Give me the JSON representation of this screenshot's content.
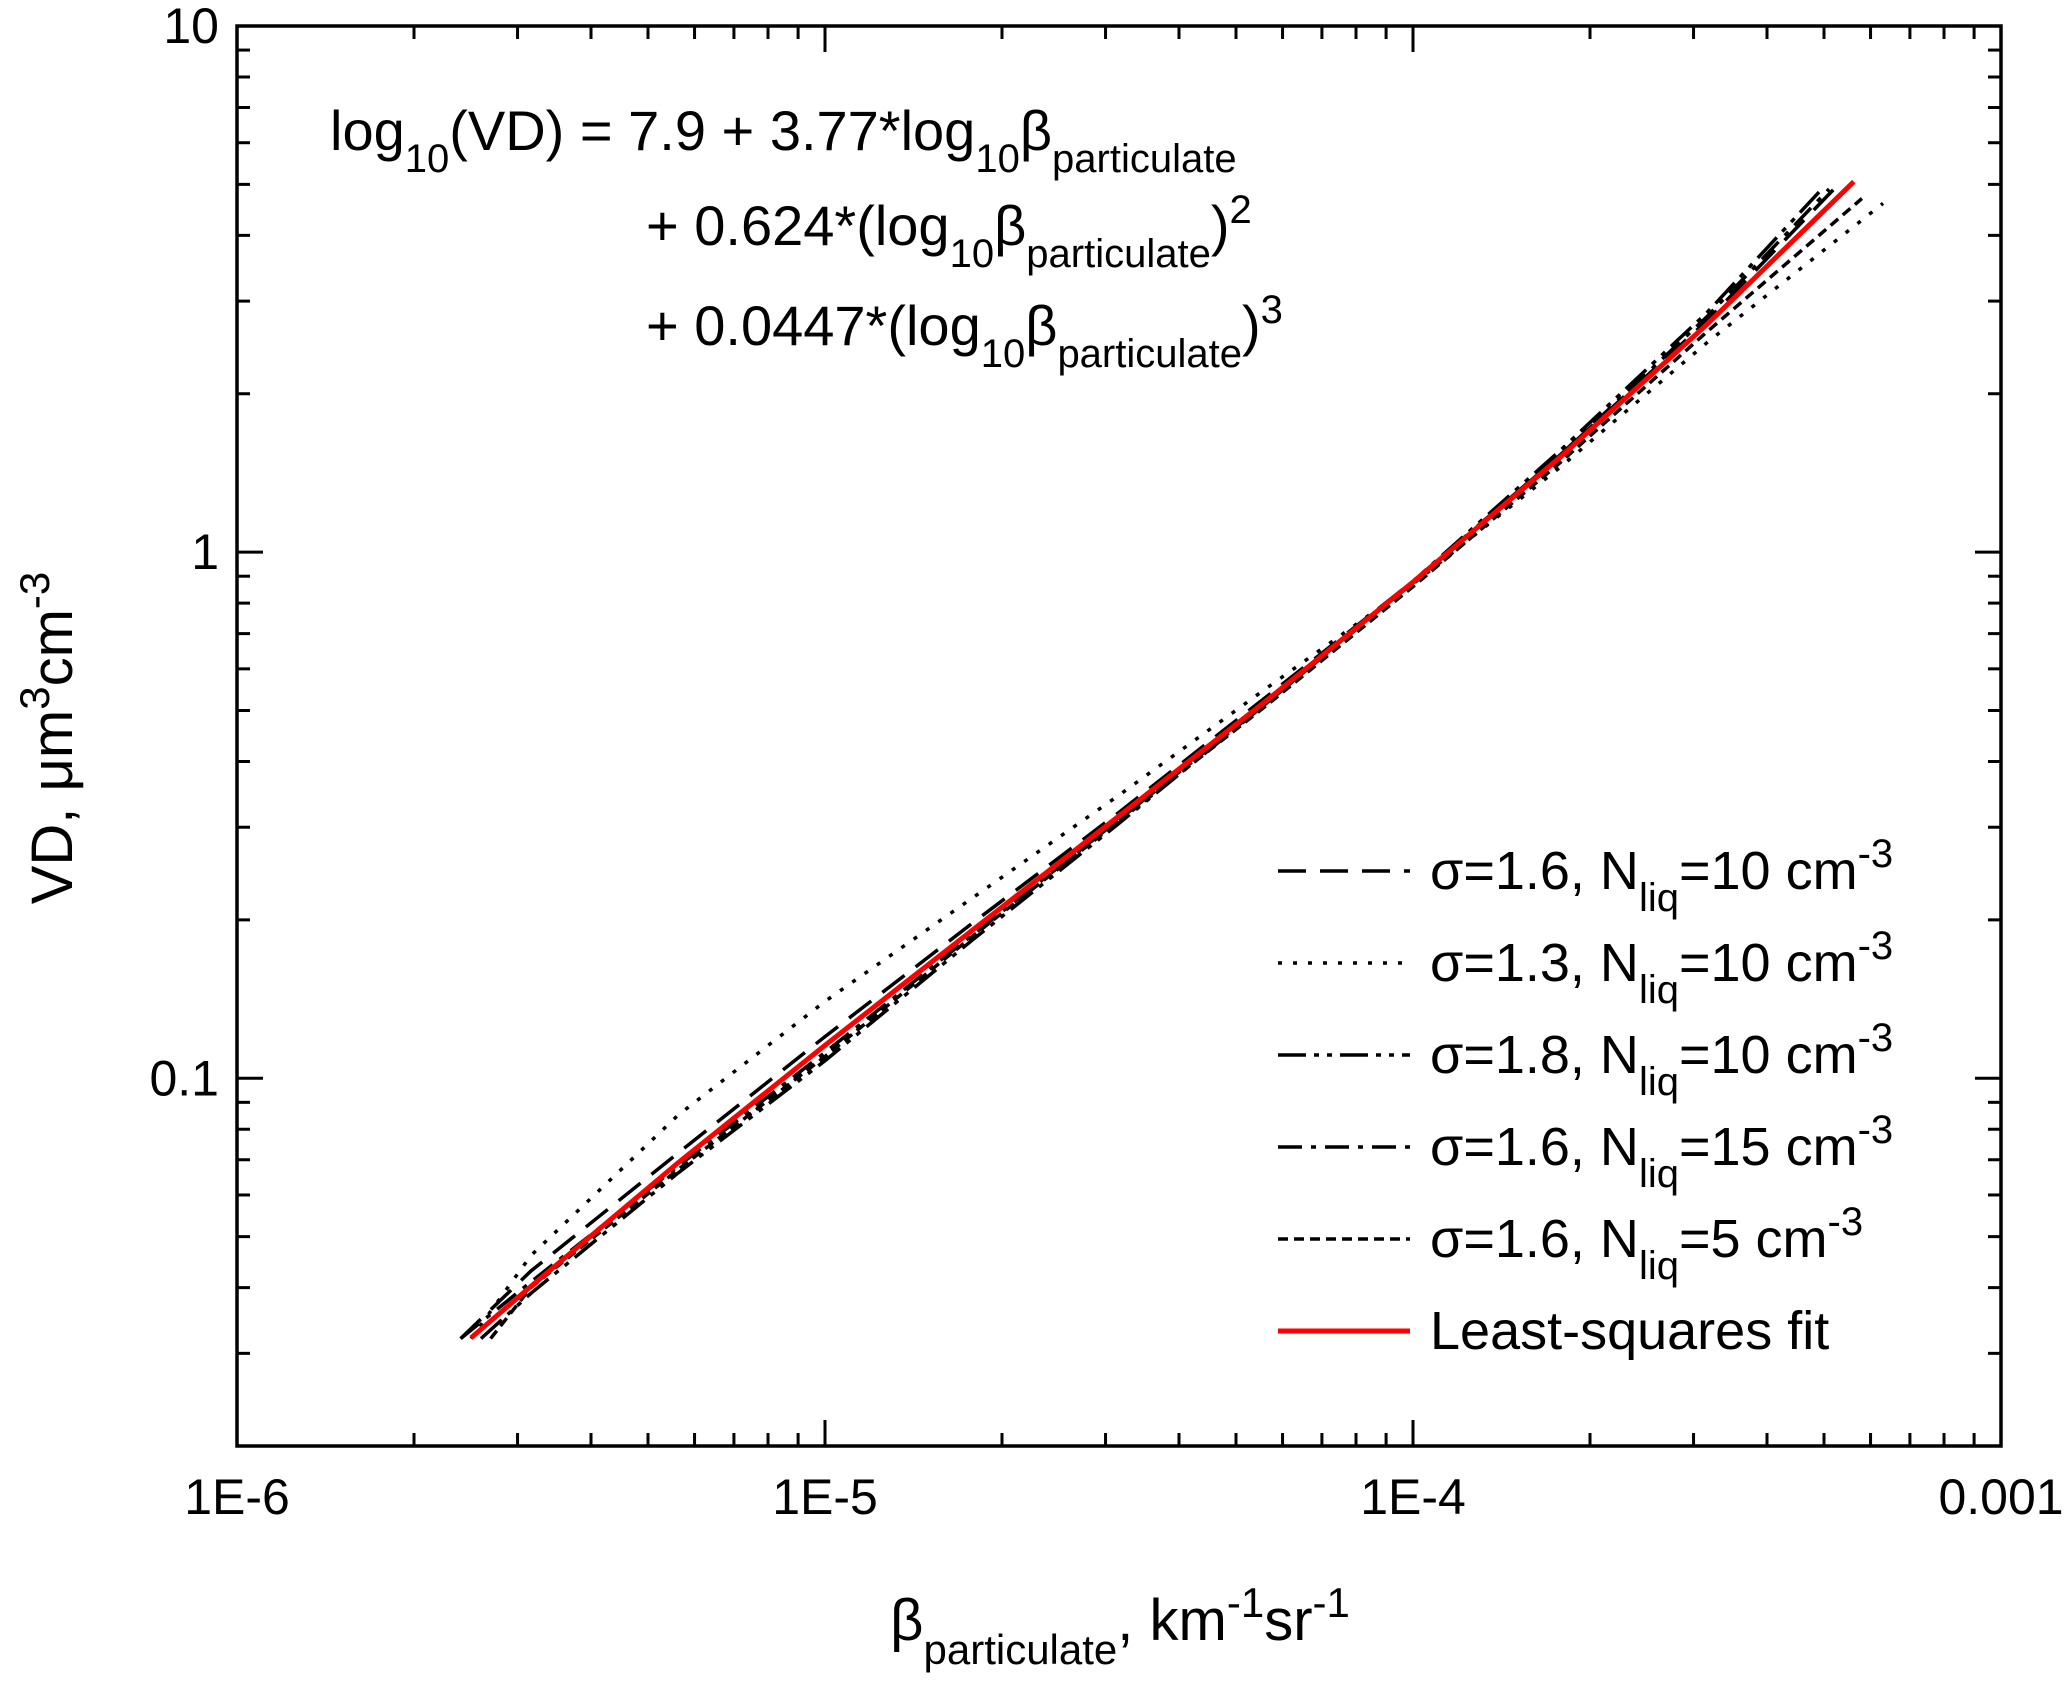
{
  "chart_data": {
    "type": "line",
    "xscale": "log",
    "yscale": "log",
    "xlim": [
      1e-06,
      0.001
    ],
    "ylim": [
      0.02,
      10
    ],
    "xticks": [
      {
        "value": 1e-06,
        "label": "1E-6"
      },
      {
        "value": 1e-05,
        "label": "1E-5"
      },
      {
        "value": 0.0001,
        "label": "1E-4"
      },
      0.001
    ],
    "yticks": [
      0.1,
      1,
      10
    ],
    "x_label": [
      "β",
      "particulate",
      ", km",
      "-1",
      "sr",
      "-1"
    ],
    "y_label": [
      "VD, μm",
      "3",
      "cm",
      "-3"
    ],
    "annotation": {
      "color": "#ff0000",
      "lines": [
        [
          "log",
          "10",
          "(VD) = 7.9 + 3.77*log",
          "10",
          "β",
          "particulate"
        ],
        [
          "+ 0.624*(log",
          "10",
          "β",
          "particulate",
          ")",
          "2"
        ],
        [
          "+ 0.0447*(log",
          "10",
          "β",
          "particulate",
          ")",
          "3"
        ]
      ]
    },
    "legend": "lower right",
    "series": [
      {
        "name": [
          "σ=1.6, N",
          "liq",
          "=10 cm",
          "-3"
        ],
        "color": "#000000",
        "dash": "dash",
        "x": [
          2.4e-06,
          3.16e-06,
          5.62e-06,
          1e-05,
          1.78e-05,
          3.16e-05,
          5.62e-05,
          0.0001,
          0.000178,
          0.000316,
          0.00052
        ],
        "values": [
          0.032,
          0.043,
          0.072,
          0.12,
          0.197,
          0.32,
          0.53,
          0.88,
          1.53,
          2.75,
          4.9
        ]
      },
      {
        "name": [
          "σ=1.3, N",
          "liq",
          "=10 cm",
          "-3"
        ],
        "color": "#000000",
        "dash": "dot",
        "x": [
          2.5e-06,
          3.16e-06,
          5.62e-06,
          1e-05,
          1.78e-05,
          3.16e-05,
          5.62e-05,
          0.0001,
          0.000178,
          0.000316,
          0.00063
        ],
        "values": [
          0.032,
          0.046,
          0.085,
          0.14,
          0.22,
          0.345,
          0.55,
          0.87,
          1.45,
          2.5,
          4.6
        ]
      },
      {
        "name": [
          "σ=1.8, N",
          "liq",
          "=10 cm",
          "-3"
        ],
        "color": "#000000",
        "dash": "dashdotdot",
        "x": [
          2.6e-06,
          3.16e-06,
          5.62e-06,
          1e-05,
          1.78e-05,
          3.16e-05,
          5.62e-05,
          0.0001,
          0.000178,
          0.000316,
          0.0005
        ],
        "values": [
          0.032,
          0.039,
          0.066,
          0.108,
          0.183,
          0.305,
          0.515,
          0.88,
          1.56,
          2.85,
          4.95
        ]
      },
      {
        "name": [
          "σ=1.6, N",
          "liq",
          "=15 cm",
          "-3"
        ],
        "color": "#000000",
        "dash": "dashdot",
        "x": [
          2.4e-06,
          3.16e-06,
          5.62e-06,
          1e-05,
          1.78e-05,
          3.16e-05,
          5.62e-05,
          0.0001,
          0.000178,
          0.000316,
          0.00051
        ],
        "values": [
          0.032,
          0.041,
          0.068,
          0.112,
          0.187,
          0.31,
          0.515,
          0.875,
          1.53,
          2.8,
          4.9
        ]
      },
      {
        "name": [
          "σ=1.6, N",
          "liq",
          "=5 cm",
          "-3"
        ],
        "color": "#000000",
        "dash": "shortdash",
        "x": [
          2.7e-06,
          3.16e-06,
          5.62e-06,
          1e-05,
          1.78e-05,
          3.16e-05,
          5.62e-05,
          0.0001,
          0.000178,
          0.000316,
          0.00058
        ],
        "values": [
          0.032,
          0.04,
          0.067,
          0.11,
          0.186,
          0.308,
          0.51,
          0.86,
          1.48,
          2.62,
          4.7
        ]
      },
      {
        "name": [
          "Least-squares fit"
        ],
        "color": "#ff0000",
        "dash": "solid",
        "x": [
          2.5e-06,
          3.16e-06,
          5.62e-06,
          1e-05,
          1.78e-05,
          3.16e-05,
          5.62e-05,
          0.0001,
          0.000178,
          0.000316,
          0.000562
        ],
        "values": [
          0.0321,
          0.0402,
          0.069,
          0.1155,
          0.191,
          0.315,
          0.521,
          0.877,
          1.515,
          2.707,
          5.06
        ]
      }
    ]
  }
}
